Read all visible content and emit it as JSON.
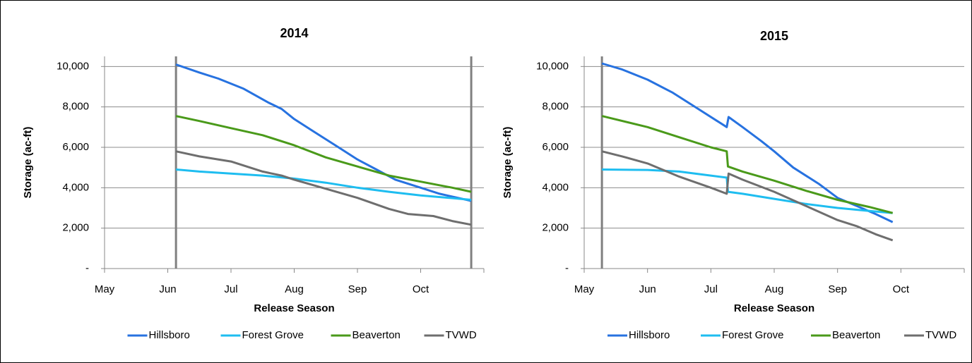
{
  "chart_data": [
    {
      "type": "line",
      "title": "2014",
      "x_label": "Release Season",
      "y_label": "Storage (ac-ft)",
      "xlim": [
        0,
        6
      ],
      "xticks": [
        {
          "value": 0,
          "label": "May"
        },
        {
          "value": 1,
          "label": "Jun"
        },
        {
          "value": 2,
          "label": "Jul"
        },
        {
          "value": 3,
          "label": "Aug"
        },
        {
          "value": 4,
          "label": "Sep"
        },
        {
          "value": 5,
          "label": "Oct"
        }
      ],
      "ylim": [
        0,
        10500
      ],
      "yticks": [
        {
          "value": 0,
          "label": "-"
        },
        {
          "value": 2000,
          "label": "2,000"
        },
        {
          "value": 4000,
          "label": "4,000"
        },
        {
          "value": 6000,
          "label": "6,000"
        },
        {
          "value": 8000,
          "label": "8,000"
        },
        {
          "value": 10000,
          "label": "10,000"
        }
      ],
      "grid": true,
      "markers": [
        1.13,
        5.8
      ],
      "marker_color": "#808080",
      "legend": "bottom",
      "series": [
        {
          "name": "Hillsboro",
          "color": "#2772e0",
          "x": [
            1.13,
            1.5,
            1.8,
            2.2,
            2.6,
            2.8,
            3.0,
            3.3,
            3.7,
            4.0,
            4.3,
            4.6,
            5.0,
            5.3,
            5.8
          ],
          "values": [
            10100,
            9700,
            9400,
            8900,
            8200,
            7900,
            7400,
            6800,
            6000,
            5400,
            4900,
            4400,
            4000,
            3700,
            3350
          ]
        },
        {
          "name": "Forest Grove",
          "color": "#1ebdf0",
          "x": [
            1.13,
            1.5,
            2,
            2.5,
            3,
            3.5,
            4,
            4.5,
            5,
            5.8
          ],
          "values": [
            4900,
            4800,
            4700,
            4600,
            4450,
            4250,
            4000,
            3800,
            3620,
            3400
          ]
        },
        {
          "name": "Beaverton",
          "color": "#4a9a1a",
          "x": [
            1.13,
            1.5,
            2,
            2.5,
            3,
            3.5,
            4,
            4.5,
            5,
            5.5,
            5.8
          ],
          "values": [
            7550,
            7300,
            6950,
            6600,
            6100,
            5500,
            5050,
            4600,
            4300,
            4000,
            3800
          ]
        },
        {
          "name": "TVWD",
          "color": "#6e6e6e",
          "x": [
            1.13,
            1.5,
            2,
            2.5,
            2.8,
            3,
            3.5,
            4,
            4.5,
            4.8,
            5.2,
            5.5,
            5.8
          ],
          "values": [
            5800,
            5550,
            5300,
            4800,
            4600,
            4400,
            3950,
            3500,
            2950,
            2700,
            2600,
            2350,
            2170
          ]
        }
      ]
    },
    {
      "type": "line",
      "title": "2015",
      "x_label": "Release Season",
      "y_label": "Storage (ac-ft)",
      "xlim": [
        0,
        6
      ],
      "xticks": [
        {
          "value": 0,
          "label": "May"
        },
        {
          "value": 1,
          "label": "Jun"
        },
        {
          "value": 2,
          "label": "Jul"
        },
        {
          "value": 3,
          "label": "Aug"
        },
        {
          "value": 4,
          "label": "Sep"
        },
        {
          "value": 5,
          "label": "Oct"
        }
      ],
      "ylim": [
        0,
        10500
      ],
      "yticks": [
        {
          "value": 0,
          "label": "-"
        },
        {
          "value": 2000,
          "label": "2,000"
        },
        {
          "value": 4000,
          "label": "4,000"
        },
        {
          "value": 6000,
          "label": "6,000"
        },
        {
          "value": 8000,
          "label": "8,000"
        },
        {
          "value": 10000,
          "label": "10,000"
        }
      ],
      "grid": true,
      "markers": [
        0.28
      ],
      "marker_color": "#808080",
      "legend": "bottom",
      "series": [
        {
          "name": "Hillsboro",
          "color": "#2772e0",
          "x": [
            0.28,
            0.6,
            1,
            1.4,
            1.8,
            2.1,
            2.25,
            2.28,
            2.5,
            2.8,
            3,
            3.3,
            3.7,
            4,
            4.3,
            4.6,
            4.87
          ],
          "values": [
            10150,
            9850,
            9350,
            8700,
            7900,
            7300,
            7000,
            7500,
            7000,
            6300,
            5800,
            5000,
            4200,
            3500,
            3100,
            2700,
            2300
          ]
        },
        {
          "name": "Forest Grove",
          "color": "#1ebdf0",
          "x": [
            0.28,
            1,
            1.5,
            2,
            2.25,
            2.27,
            2.5,
            3,
            3.5,
            4,
            4.5,
            4.87
          ],
          "values": [
            4900,
            4880,
            4800,
            4600,
            4500,
            3800,
            3700,
            3450,
            3200,
            3000,
            2850,
            2750
          ]
        },
        {
          "name": "Beaverton",
          "color": "#4a9a1a",
          "x": [
            0.28,
            1,
            1.5,
            2,
            2.25,
            2.27,
            2.5,
            3,
            3.5,
            4,
            4.5,
            4.87
          ],
          "values": [
            7550,
            7000,
            6500,
            6000,
            5800,
            5050,
            4800,
            4350,
            3850,
            3400,
            3050,
            2750
          ]
        },
        {
          "name": "TVWD",
          "color": "#6e6e6e",
          "x": [
            0.28,
            0.6,
            1,
            1.5,
            2,
            2.25,
            2.28,
            2.5,
            3,
            3.5,
            4,
            4.3,
            4.6,
            4.87
          ],
          "values": [
            5800,
            5550,
            5200,
            4550,
            4000,
            3700,
            4700,
            4400,
            3800,
            3100,
            2400,
            2100,
            1700,
            1400
          ]
        }
      ]
    }
  ]
}
